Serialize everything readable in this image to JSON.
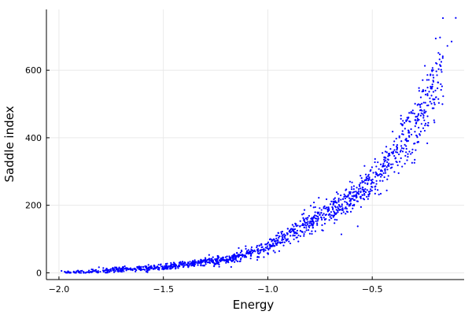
{
  "chart_data": {
    "type": "scatter",
    "title": "",
    "xlabel": "Energy",
    "ylabel": "Saddle index",
    "xlim": [
      -2.06,
      -0.06
    ],
    "ylim": [
      -20,
      780
    ],
    "x_ticks": [
      -2.0,
      -1.5,
      -1.0,
      -0.5
    ],
    "x_tick_labels": [
      "−2.0",
      "−1.5",
      "−1.0",
      "−0.5"
    ],
    "y_ticks": [
      0,
      200,
      400,
      600
    ],
    "y_tick_labels": [
      "0",
      "200",
      "400",
      "600"
    ],
    "grid": true,
    "legend": "none",
    "marker_color": "#0000ff",
    "trend": {
      "description_points": [
        {
          "x": -2.0,
          "y": 0
        },
        {
          "x": -1.8,
          "y": 5
        },
        {
          "x": -1.5,
          "y": 18
        },
        {
          "x": -1.2,
          "y": 40
        },
        {
          "x": -1.0,
          "y": 75
        },
        {
          "x": -0.8,
          "y": 150
        },
        {
          "x": -0.6,
          "y": 220
        },
        {
          "x": -0.5,
          "y": 270
        },
        {
          "x": -0.4,
          "y": 340
        },
        {
          "x": -0.3,
          "y": 430
        },
        {
          "x": -0.2,
          "y": 560
        },
        {
          "x": -0.15,
          "y": 650
        },
        {
          "x": -0.1,
          "y": 755
        }
      ]
    },
    "point_count": 1400
  }
}
